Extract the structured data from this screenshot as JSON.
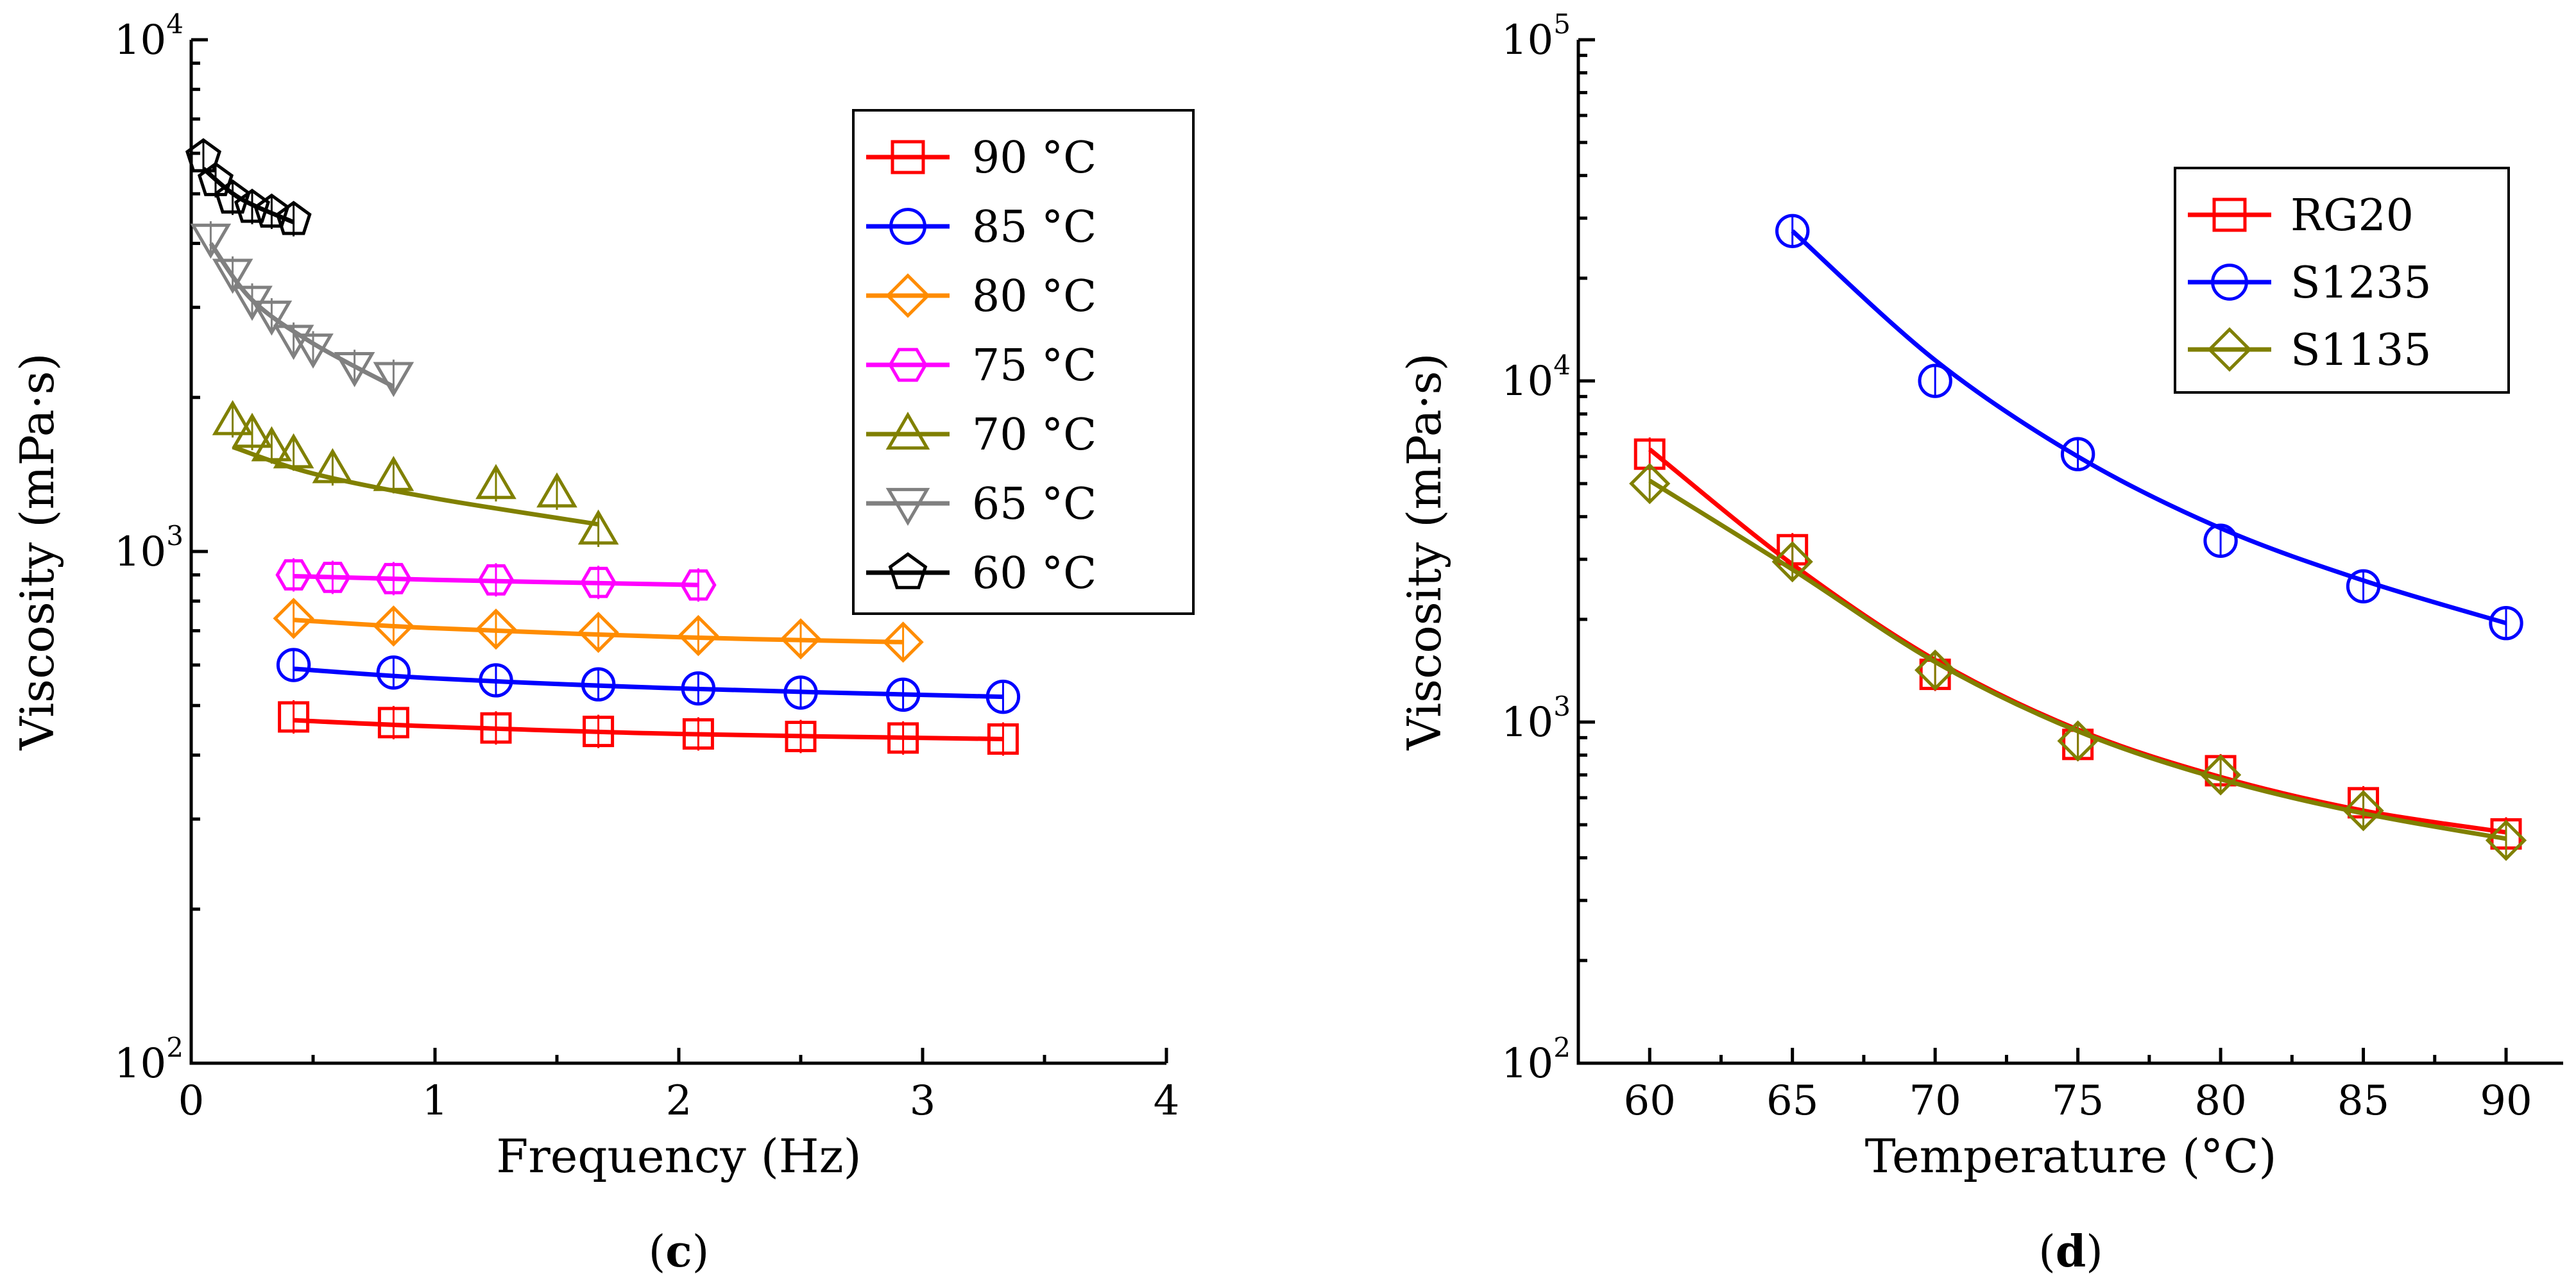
{
  "chart_data": [
    {
      "type": "scatter",
      "panel_label": "c",
      "xlabel": "Frequency (Hz)",
      "ylabel": "Viscosity (mPa·s)",
      "xlim": [
        0,
        4
      ],
      "ylim": [
        100,
        10000
      ],
      "yscale": "log",
      "x_ticks": [
        "0",
        "1",
        "2",
        "3",
        "4"
      ],
      "y_ticks": [
        {
          "base": "10",
          "exp": "2"
        },
        {
          "base": "10",
          "exp": "3"
        },
        {
          "base": "10",
          "exp": "4"
        }
      ],
      "legend_position": "top-right",
      "grid": false,
      "series": [
        {
          "name": "90 °C",
          "color": "#ff0000",
          "marker": "square",
          "x": [
            0.42,
            0.83,
            1.25,
            1.67,
            2.08,
            2.5,
            2.92,
            3.33
          ],
          "y": [
            475,
            463,
            452,
            445,
            440,
            435,
            432,
            430
          ],
          "fit": [
            [
              0.42,
              468
            ],
            [
              1.0,
              455
            ],
            [
              2.0,
              440
            ],
            [
              3.33,
              430
            ]
          ]
        },
        {
          "name": "85 °C",
          "color": "#0000ff",
          "marker": "circle",
          "x": [
            0.42,
            0.83,
            1.25,
            1.67,
            2.08,
            2.5,
            2.92,
            3.33
          ],
          "y": [
            600,
            580,
            560,
            550,
            540,
            530,
            525,
            520
          ],
          "fit": [
            [
              0.42,
              590
            ],
            [
              1.0,
              565
            ],
            [
              2.0,
              540
            ],
            [
              3.33,
              520
            ]
          ]
        },
        {
          "name": "80 °C",
          "color": "#ff8c00",
          "marker": "diamond",
          "x": [
            0.42,
            0.83,
            1.25,
            1.67,
            2.08,
            2.5,
            2.92
          ],
          "y": [
            740,
            715,
            705,
            695,
            685,
            675,
            665
          ],
          "fit": [
            [
              0.42,
              735
            ],
            [
              1.0,
              708
            ],
            [
              2.0,
              680
            ],
            [
              2.92,
              665
            ]
          ]
        },
        {
          "name": "75 °C",
          "color": "#ff00ff",
          "marker": "hexagon",
          "x": [
            0.42,
            0.58,
            0.83,
            1.25,
            1.67,
            2.08
          ],
          "y": [
            900,
            890,
            885,
            880,
            870,
            860
          ],
          "fit": [
            [
              0.42,
              895
            ],
            [
              1.0,
              880
            ],
            [
              2.08,
              860
            ]
          ]
        },
        {
          "name": "70 °C",
          "color": "#808000",
          "marker": "triangle-up",
          "x": [
            0.17,
            0.25,
            0.33,
            0.42,
            0.58,
            0.83,
            1.25,
            1.5,
            1.67
          ],
          "y": [
            1800,
            1700,
            1600,
            1550,
            1450,
            1400,
            1350,
            1300,
            1100
          ],
          "fit": [
            [
              0.17,
              1600
            ],
            [
              0.5,
              1420
            ],
            [
              1.0,
              1270
            ],
            [
              1.67,
              1130
            ]
          ]
        },
        {
          "name": "65 °C",
          "color": "#808080",
          "marker": "triangle-down",
          "x": [
            0.08,
            0.17,
            0.25,
            0.33,
            0.42,
            0.5,
            0.67,
            0.83
          ],
          "y": [
            4100,
            3500,
            3100,
            2900,
            2600,
            2500,
            2300,
            2200
          ],
          "fit": [
            [
              0.08,
              4000
            ],
            [
              0.25,
              3100
            ],
            [
              0.5,
              2550
            ],
            [
              0.83,
              2100
            ]
          ]
        },
        {
          "name": "60 °C",
          "color": "#000000",
          "marker": "pentagon",
          "x": [
            0.05,
            0.1,
            0.17,
            0.25,
            0.33,
            0.42
          ],
          "y": [
            5900,
            5300,
            4900,
            4700,
            4600,
            4450
          ],
          "fit": [
            [
              0.05,
              5600
            ],
            [
              0.2,
              4900
            ],
            [
              0.42,
              4400
            ]
          ]
        }
      ]
    },
    {
      "type": "scatter",
      "panel_label": "d",
      "xlabel": "Temperature (°C)",
      "ylabel": "Viscosity (mPa·s)",
      "xlim": [
        57.5,
        92
      ],
      "ylim": [
        100,
        100000
      ],
      "yscale": "log",
      "x_ticks": [
        "60",
        "65",
        "70",
        "75",
        "80",
        "85",
        "90"
      ],
      "y_ticks": [
        {
          "base": "10",
          "exp": "2"
        },
        {
          "base": "10",
          "exp": "3"
        },
        {
          "base": "10",
          "exp": "4"
        },
        {
          "base": "10",
          "exp": "5"
        }
      ],
      "legend_position": "top-right",
      "grid": false,
      "series": [
        {
          "name": "RG20",
          "color": "#ff0000",
          "marker": "square",
          "x": [
            60,
            65,
            70,
            75,
            80,
            85,
            90
          ],
          "y": [
            6100,
            3200,
            1380,
            860,
            720,
            580,
            470
          ],
          "fit": [
            [
              60,
              6300
            ],
            [
              65,
              2900
            ],
            [
              70,
              1520
            ],
            [
              75,
              950
            ],
            [
              80,
              690
            ],
            [
              85,
              550
            ],
            [
              90,
              475
            ]
          ]
        },
        {
          "name": "S1235",
          "color": "#0000ff",
          "marker": "circle",
          "x": [
            65,
            70,
            75,
            80,
            85,
            90
          ],
          "y": [
            27500,
            10000,
            6100,
            3400,
            2500,
            1950
          ],
          "fit": [
            [
              65,
              27500
            ],
            [
              70,
              11500
            ],
            [
              75,
              6000
            ],
            [
              80,
              3700
            ],
            [
              85,
              2600
            ],
            [
              90,
              1950
            ]
          ]
        },
        {
          "name": "S1135",
          "color": "#808000",
          "marker": "diamond",
          "x": [
            60,
            65,
            70,
            75,
            80,
            85,
            90
          ],
          "y": [
            5000,
            2950,
            1420,
            880,
            700,
            550,
            450
          ],
          "fit": [
            [
              60,
              5100
            ],
            [
              65,
              2800
            ],
            [
              70,
              1500
            ],
            [
              75,
              940
            ],
            [
              80,
              680
            ],
            [
              85,
              540
            ],
            [
              90,
              455
            ]
          ]
        }
      ]
    }
  ]
}
